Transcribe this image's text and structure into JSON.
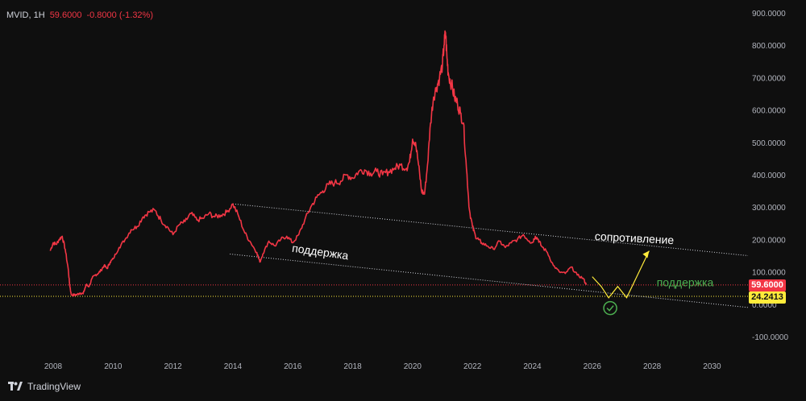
{
  "header": {
    "symbol": "MVID, 1H",
    "last": "59.6000",
    "change": "-0.8000 (-1.32%)"
  },
  "footer": {
    "brand": "TradingView"
  },
  "colors": {
    "price_line": "#f23645",
    "support_level": "#ffeb3b",
    "forecast": "#ffeb3b",
    "trend_lines": "#d1d4dc",
    "check_mark": "#26a69a",
    "support_label_green": "#4caf50"
  },
  "chart_data": {
    "type": "line",
    "title": "",
    "xlabel": "",
    "ylabel": "",
    "xlim": [
      2007.3,
      2031.2
    ],
    "ylim": [
      -100,
      900
    ],
    "x_ticks": [
      "2008",
      "2010",
      "2012",
      "2014",
      "2016",
      "2018",
      "2020",
      "2022",
      "2024",
      "2026",
      "2028",
      "2030"
    ],
    "y_ticks": [
      "900.0000",
      "800.0000",
      "700.0000",
      "600.0000",
      "500.0000",
      "400.0000",
      "300.0000",
      "200.0000",
      "100.0000",
      "0.0000",
      "-100.0000"
    ],
    "series": [
      {
        "x": [
          2007.9,
          2008.0,
          2008.1,
          2008.2,
          2008.3,
          2008.4,
          2008.5,
          2008.55,
          2008.6,
          2008.7,
          2008.8,
          2008.9,
          2009.0,
          2009.1,
          2009.2,
          2009.3,
          2009.4,
          2009.5,
          2009.6,
          2009.7,
          2009.8,
          2009.9,
          2010.0,
          2010.2,
          2010.4,
          2010.6,
          2010.8,
          2011.0,
          2011.2,
          2011.4,
          2011.6,
          2011.8,
          2012.0,
          2012.2,
          2012.4,
          2012.6,
          2012.8,
          2013.0,
          2013.2,
          2013.4,
          2013.6,
          2013.8,
          2014.0,
          2014.2,
          2014.4,
          2014.6,
          2014.8,
          2014.9,
          2015.0,
          2015.2,
          2015.4,
          2015.6,
          2015.8,
          2016.0,
          2016.2,
          2016.4,
          2016.6,
          2016.8,
          2017.0,
          2017.2,
          2017.4,
          2017.6,
          2017.8,
          2018.0,
          2018.2,
          2018.4,
          2018.6,
          2018.8,
          2019.0,
          2019.2,
          2019.4,
          2019.6,
          2019.8,
          2019.9,
          2020.0,
          2020.1,
          2020.2,
          2020.3,
          2020.4,
          2020.5,
          2020.6,
          2020.7,
          2020.8,
          2020.9,
          2021.0,
          2021.05,
          2021.1,
          2021.15,
          2021.2,
          2021.3,
          2021.4,
          2021.5,
          2021.6,
          2021.7,
          2021.8,
          2021.9,
          2022.0,
          2022.1,
          2022.2,
          2022.3,
          2022.5,
          2022.7,
          2022.9,
          2023.1,
          2023.3,
          2023.5,
          2023.7,
          2023.9,
          2024.0,
          2024.1,
          2024.2,
          2024.3,
          2024.5,
          2024.7,
          2024.9,
          2025.1,
          2025.3,
          2025.5,
          2025.7,
          2025.8
        ],
        "values": [
          165,
          190,
          185,
          200,
          210,
          170,
          110,
          60,
          30,
          28,
          30,
          35,
          32,
          60,
          55,
          80,
          90,
          95,
          105,
          120,
          110,
          130,
          140,
          175,
          200,
          230,
          240,
          270,
          285,
          290,
          260,
          240,
          215,
          245,
          255,
          280,
          260,
          265,
          280,
          270,
          275,
          285,
          310,
          270,
          220,
          190,
          160,
          130,
          155,
          195,
          180,
          200,
          210,
          190,
          215,
          260,
          300,
          330,
          350,
          370,
          375,
          380,
          400,
          390,
          410,
          415,
          405,
          410,
          400,
          410,
          420,
          430,
          420,
          440,
          510,
          500,
          430,
          350,
          340,
          430,
          560,
          640,
          670,
          700,
          740,
          800,
          840,
          760,
          710,
          680,
          640,
          620,
          590,
          560,
          420,
          290,
          240,
          210,
          200,
          190,
          180,
          170,
          195,
          175,
          190,
          200,
          215,
          195,
          190,
          210,
          200,
          180,
          160,
          120,
          100,
          95,
          115,
          90,
          80,
          60
        ]
      }
    ],
    "horizontal_levels": [
      {
        "value": 59.6,
        "label": "59.6000"
      },
      {
        "value": 24.2413,
        "label": "24.2413"
      }
    ],
    "trend_lines": [
      {
        "x0": 2014.0,
        "y0": 310,
        "x1": 2031.2,
        "y1": 150
      },
      {
        "x0": 2013.9,
        "y0": 155,
        "x1": 2031.2,
        "y1": -10
      }
    ],
    "forecast_path": {
      "x": [
        2026.0,
        2026.3,
        2026.55,
        2026.85,
        2027.15,
        2027.9
      ],
      "values": [
        85,
        55,
        20,
        55,
        20,
        165
      ]
    },
    "annotations": [
      {
        "text": "сопротивление",
        "x": 2027.4,
        "y": 192,
        "rotate": 3
      },
      {
        "text": "поддержка",
        "x": 2016.9,
        "y": 150,
        "rotate": 8
      },
      {
        "text": "поддержка",
        "x": 2029.1,
        "y": 55,
        "rotate": 0
      }
    ],
    "check_mark": {
      "x": 2026.6,
      "y": -12
    },
    "grid": false,
    "legend": "none"
  }
}
